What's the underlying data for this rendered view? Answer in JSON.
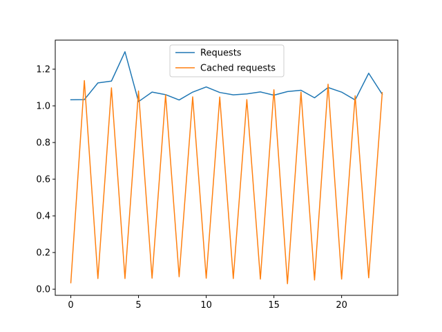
{
  "chart_data": {
    "type": "line",
    "x": [
      0,
      1,
      2,
      3,
      4,
      5,
      6,
      7,
      8,
      9,
      10,
      11,
      12,
      13,
      14,
      15,
      16,
      17,
      18,
      19,
      20,
      21,
      22,
      23
    ],
    "series": [
      {
        "name": "Requests",
        "color": "#1f77b4",
        "values": [
          1.033,
          1.034,
          1.125,
          1.135,
          1.295,
          1.023,
          1.075,
          1.061,
          1.032,
          1.075,
          1.103,
          1.073,
          1.06,
          1.065,
          1.076,
          1.058,
          1.078,
          1.085,
          1.044,
          1.1,
          1.075,
          1.032,
          1.178,
          1.063
        ]
      },
      {
        "name": "Cached requests",
        "color": "#ff7f0e",
        "values": [
          0.035,
          1.138,
          0.058,
          1.098,
          0.058,
          1.081,
          0.06,
          1.06,
          0.068,
          1.049,
          0.06,
          1.048,
          0.058,
          1.034,
          0.055,
          1.088,
          0.03,
          1.075,
          0.05,
          1.118,
          0.055,
          1.055,
          0.062,
          1.072
        ]
      }
    ],
    "xlim": [
      -1.15,
      24.15
    ],
    "ylim": [
      -0.0335,
      1.3585
    ],
    "xticks": [
      0,
      5,
      10,
      15,
      20
    ],
    "yticks": [
      0.0,
      0.2,
      0.4,
      0.6,
      0.8,
      1.0,
      1.2
    ],
    "xtick_labels": [
      "0",
      "5",
      "10",
      "15",
      "20"
    ],
    "ytick_labels": [
      "0.0",
      "0.2",
      "0.4",
      "0.6",
      "0.8",
      "1.0",
      "1.2"
    ],
    "grid": false,
    "legend_position": "top-center"
  }
}
